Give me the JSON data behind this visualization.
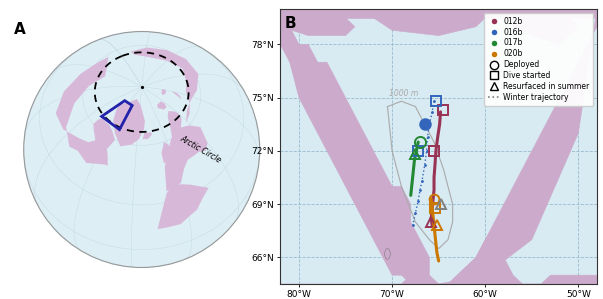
{
  "panel_A_label": "A",
  "panel_B_label": "B",
  "globe_bg_color": "#ddeef5",
  "globe_land_color": "#d8b8d8",
  "globe_outline_color": "#999999",
  "arctic_circle_label": "Arctic Circle",
  "study_box_color": "#2222aa",
  "map_ocean_color": "#d8eaf2",
  "map_land_color": "#ccaacb",
  "map_border_color": "#444444",
  "depth_contour_color": "#aaaaaa",
  "depth_contour_label": "1000 m",
  "grid_color": "#99bbcc",
  "lat_ticks": [
    66,
    69,
    72,
    75,
    78
  ],
  "lon_ticks": [
    -80,
    -70,
    -60,
    -50
  ],
  "lat_labels": [
    "66°N",
    "69°N",
    "72°N",
    "75°N",
    "78°N"
  ],
  "lon_labels": [
    "80°W",
    "70°W",
    "60°W",
    "50°W"
  ],
  "float_colors": {
    "012b": "#993355",
    "016b": "#3366bb",
    "017b": "#228833",
    "020b": "#cc7700"
  }
}
